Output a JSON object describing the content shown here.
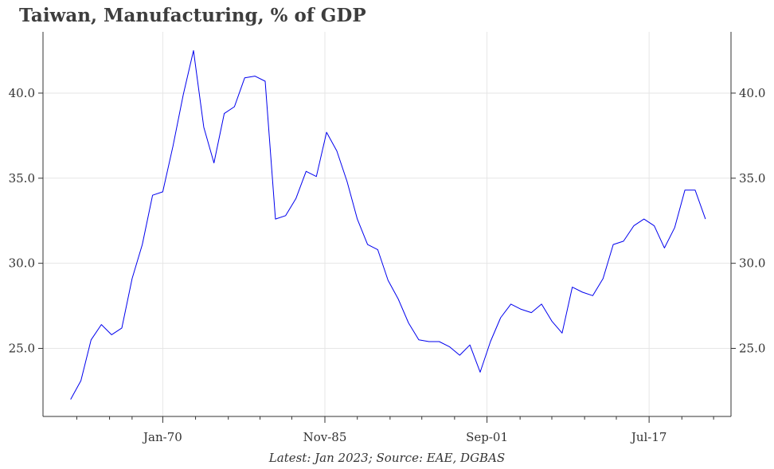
{
  "chart_data": {
    "type": "line",
    "title": "Taiwan, Manufacturing, % of GDP",
    "caption": "Latest: Jan 2023; Source: EAE, DGBAS",
    "xlabel": "",
    "ylabel": "",
    "x_start_year": 1961,
    "x_step_years": 1,
    "xlim": [
      1958.3,
      2025.5
    ],
    "ylim": [
      21.0,
      43.6
    ],
    "y_ticks": [
      25.0,
      30.0,
      35.0,
      40.0
    ],
    "y_tick_labels": [
      "25.0",
      "30.0",
      "35.0",
      "40.0"
    ],
    "x_ticks": [
      1970,
      1985.8333,
      2001.6667,
      2017.5
    ],
    "x_tick_labels": [
      "Jan-70",
      "Nov-85",
      "Sep-01",
      "Jul-17"
    ],
    "x_minor_ticks": [
      1961.6,
      1964.8,
      1967.0,
      1973.2,
      1976.4,
      1979.5,
      1982.6,
      1989.0,
      1992.2,
      1995.3,
      1998.5,
      2004.9,
      2008.0,
      2011.2,
      2014.3,
      2020.7,
      2023.8
    ],
    "grid": true,
    "line_color": "#0000ee",
    "series": [
      {
        "name": "",
        "values": [
          22.0,
          23.1,
          25.5,
          26.4,
          25.8,
          26.2,
          29.1,
          31.1,
          34.0,
          34.2,
          36.9,
          39.9,
          42.5,
          38.0,
          35.9,
          38.8,
          39.2,
          40.9,
          41.0,
          40.7,
          32.6,
          32.8,
          33.8,
          35.4,
          35.1,
          37.7,
          36.6,
          34.8,
          32.6,
          31.1,
          30.8,
          29.0,
          27.9,
          26.5,
          25.5,
          25.4,
          25.4,
          25.1,
          24.6,
          25.2,
          23.6,
          25.4,
          26.8,
          27.6,
          27.3,
          27.1,
          27.6,
          26.6,
          25.9,
          28.6,
          28.3,
          28.1,
          29.1,
          31.1,
          31.3,
          32.2,
          32.6,
          32.2,
          30.9,
          32.1,
          34.3,
          34.3,
          32.6
        ]
      }
    ]
  }
}
